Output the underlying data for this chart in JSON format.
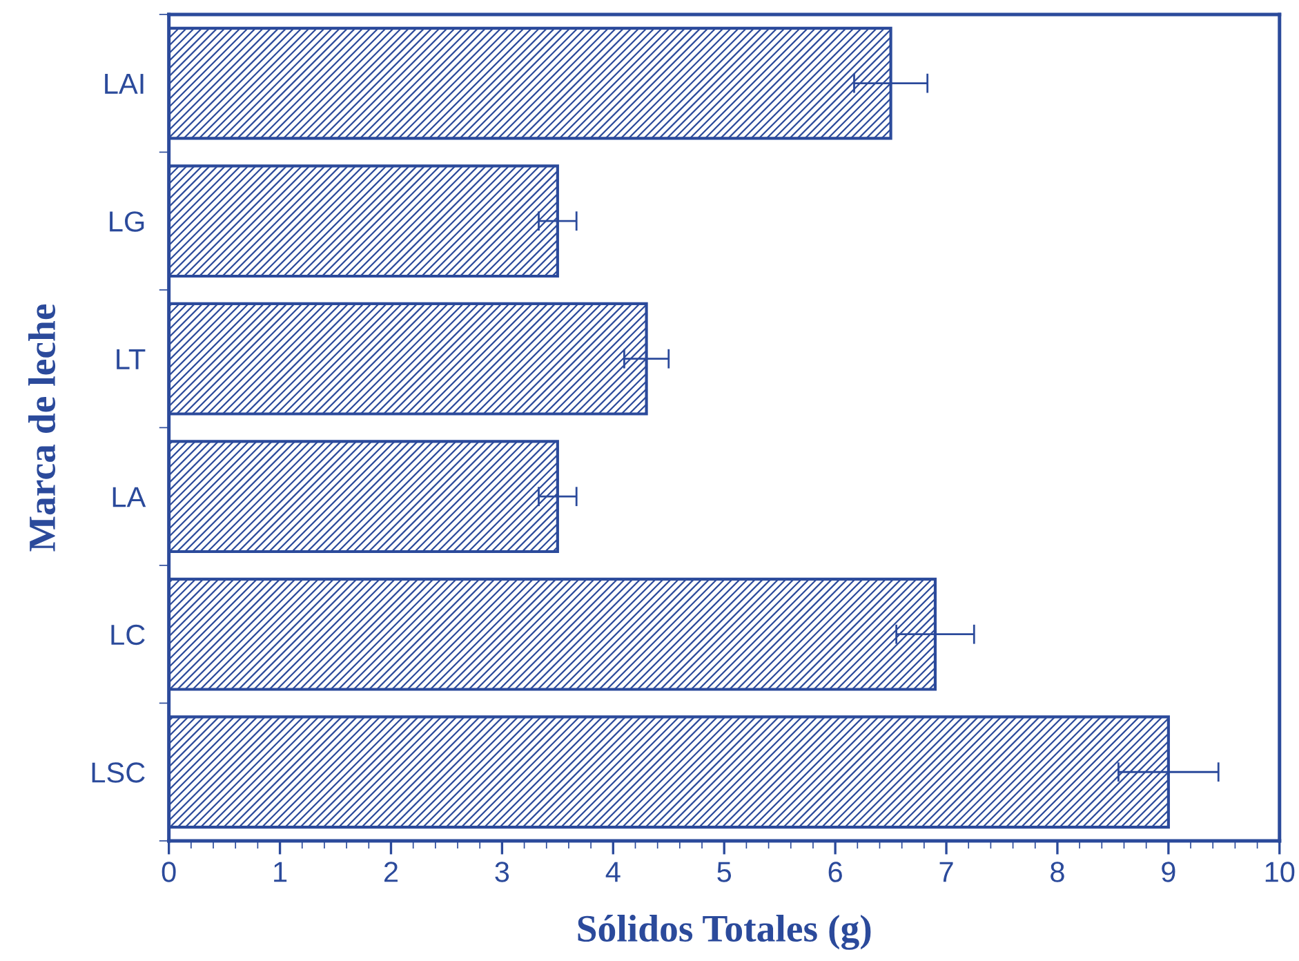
{
  "chart_data": {
    "type": "bar",
    "orientation": "horizontal",
    "xlabel": "Sólidos Totales (g)",
    "ylabel": "Marca de leche",
    "categories": [
      "LAI",
      "LG",
      "LT",
      "LA",
      "LC",
      "LSC"
    ],
    "values": [
      6.5,
      3.5,
      4.3,
      3.5,
      6.9,
      9.0
    ],
    "errors": [
      0.33,
      0.17,
      0.2,
      0.17,
      0.35,
      0.45
    ],
    "color": "#2b4a9b",
    "xlim": [
      0,
      10
    ],
    "xticks": [
      0,
      1,
      2,
      3,
      4,
      5,
      6,
      7,
      8,
      9,
      10
    ],
    "grid": false
  }
}
